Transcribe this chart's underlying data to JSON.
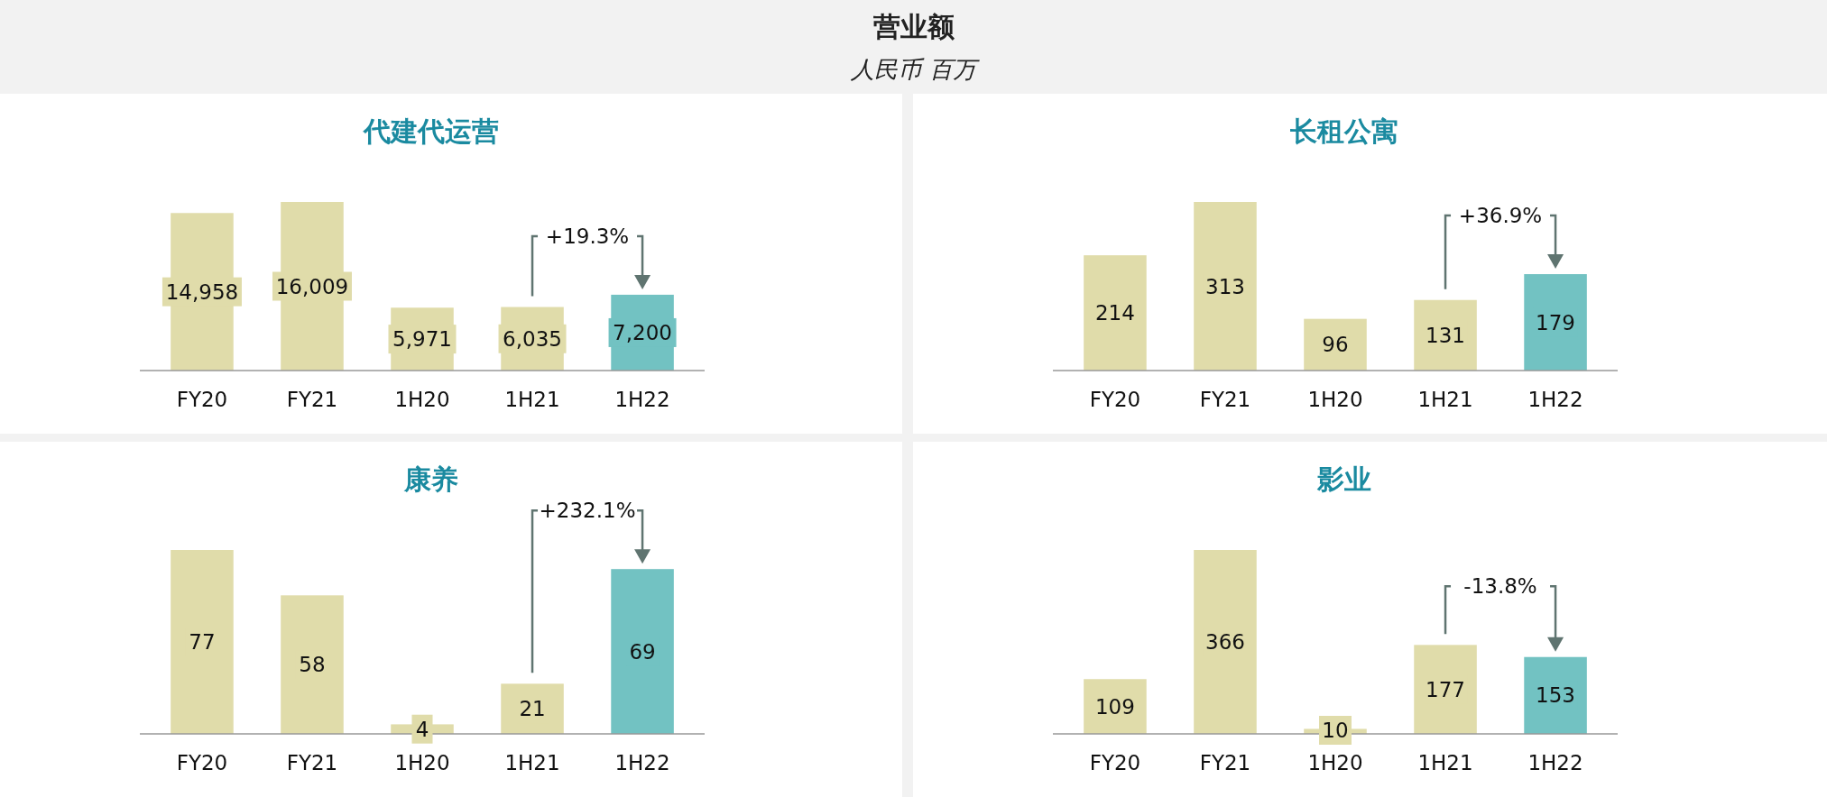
{
  "chart_data": [
    {
      "type": "other",
      "title": "营业额",
      "subtitle": "人民币 百万"
    },
    {
      "type": "bar",
      "title": "代建代运营",
      "categories": [
        "FY20",
        "FY21",
        "1H20",
        "1H21",
        "1H22"
      ],
      "values": [
        14958,
        16009,
        5971,
        6035,
        7200
      ],
      "value_labels": [
        "14,958",
        "16,009",
        "5,971",
        "6,035",
        "7,200"
      ],
      "colors": [
        "#e0dcaa",
        "#e0dcaa",
        "#e0dcaa",
        "#e0dcaa",
        "#72c2c2"
      ],
      "annotations": [
        "+19.3%"
      ]
    },
    {
      "type": "bar",
      "title": "长租公寓",
      "categories": [
        "FY20",
        "FY21",
        "1H20",
        "1H21",
        "1H22"
      ],
      "values": [
        214,
        313,
        96,
        131,
        179
      ],
      "colors": [
        "#e0dcaa",
        "#e0dcaa",
        "#e0dcaa",
        "#e0dcaa",
        "#72c2c2"
      ],
      "data_labels": true,
      "annotations": [
        "+36.9%"
      ]
    },
    {
      "type": "bar",
      "title": "康养",
      "categories": [
        "FY20",
        "FY21",
        "1H20",
        "1H21",
        "1H22"
      ],
      "values": [
        77,
        58,
        4,
        21,
        69
      ],
      "colors": [
        "#e0dcaa",
        "#e0dcaa",
        "#e0dcaa",
        "#e0dcaa",
        "#72c2c2"
      ],
      "data_labels": true,
      "annotations": [
        "+232.1%"
      ]
    },
    {
      "type": "bar",
      "title": "影业",
      "categories": [
        "FY20",
        "FY21",
        "1H20",
        "1H21",
        "1H22"
      ],
      "values": [
        109,
        366,
        10,
        177,
        153
      ],
      "colors": [
        "#e0dcaa",
        "#e0dcaa",
        "#e0dcaa",
        "#e0dcaa",
        "#72c2c2"
      ],
      "data_labels": true,
      "annotations": [
        "-13.8%"
      ]
    }
  ]
}
